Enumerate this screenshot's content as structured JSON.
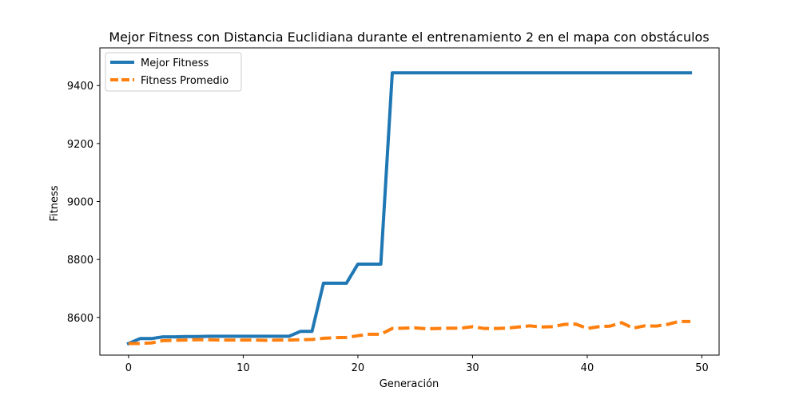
{
  "chart_data": {
    "type": "line",
    "title": "Mejor Fitness con Distancia Euclidiana durante el entrenamiento 2 en el mapa con obstáculos",
    "xlabel": "Generación",
    "ylabel": "Fitness",
    "xlim": [
      -2.5,
      51.5
    ],
    "ylim": [
      8470,
      9530
    ],
    "xticks": [
      0,
      10,
      20,
      30,
      40,
      50
    ],
    "yticks": [
      8600,
      8800,
      9000,
      9200,
      9400
    ],
    "grid": false,
    "legend_position": "top-left",
    "x": [
      0,
      1,
      2,
      3,
      4,
      5,
      6,
      7,
      8,
      9,
      10,
      11,
      12,
      13,
      14,
      15,
      16,
      17,
      18,
      19,
      20,
      21,
      22,
      23,
      24,
      25,
      26,
      27,
      28,
      29,
      30,
      31,
      32,
      33,
      34,
      35,
      36,
      37,
      38,
      39,
      40,
      41,
      42,
      43,
      44,
      45,
      46,
      47,
      48,
      49
    ],
    "series": [
      {
        "name": "Mejor Fitness",
        "color": "#1f77b4",
        "style": "solid",
        "values": [
          8510,
          8527,
          8527,
          8533,
          8533,
          8534,
          8534,
          8535,
          8535,
          8535,
          8535,
          8535,
          8535,
          8535,
          8535,
          8552,
          8552,
          8718,
          8718,
          8718,
          8784,
          8784,
          8784,
          9444,
          9444,
          9444,
          9444,
          9444,
          9444,
          9444,
          9444,
          9444,
          9444,
          9444,
          9444,
          9444,
          9444,
          9444,
          9444,
          9444,
          9444,
          9444,
          9444,
          9444,
          9444,
          9444,
          9444,
          9444,
          9444,
          9444
        ]
      },
      {
        "name": "Fitness Promedio",
        "color": "#ff7f0e",
        "style": "dashed",
        "values": [
          8510,
          8510,
          8512,
          8520,
          8521,
          8522,
          8523,
          8523,
          8522,
          8522,
          8522,
          8522,
          8521,
          8522,
          8522,
          8523,
          8524,
          8528,
          8530,
          8531,
          8537,
          8542,
          8542,
          8562,
          8563,
          8564,
          8561,
          8562,
          8563,
          8563,
          8568,
          8562,
          8562,
          8563,
          8567,
          8571,
          8567,
          8568,
          8576,
          8577,
          8562,
          8568,
          8570,
          8582,
          8563,
          8571,
          8570,
          8576,
          8586,
          8586
        ]
      }
    ]
  }
}
